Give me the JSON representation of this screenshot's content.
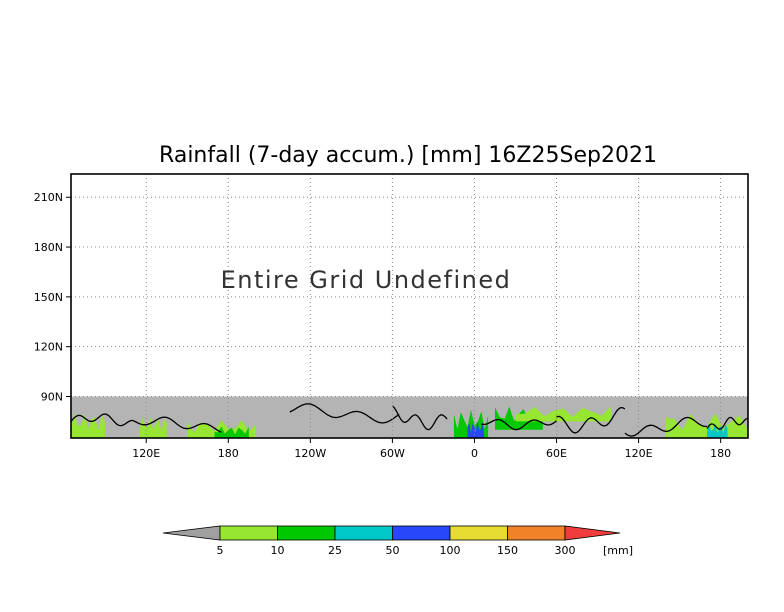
{
  "chart_data": {
    "type": "heatmap",
    "title": "Rainfall (7-day accum.) [mm] 16Z25Sep2021",
    "xlabel": "",
    "ylabel": "",
    "x_ticks": [
      {
        "value": 120,
        "label": "120E"
      },
      {
        "value": 180,
        "label": "180"
      },
      {
        "value": 240,
        "label": "120W"
      },
      {
        "value": 300,
        "label": "60W"
      },
      {
        "value": 360,
        "label": "0"
      },
      {
        "value": 420,
        "label": "60E"
      },
      {
        "value": 480,
        "label": "120E"
      },
      {
        "value": 540,
        "label": "180"
      }
    ],
    "y_ticks": [
      {
        "value": 90,
        "label": "90N"
      },
      {
        "value": 120,
        "label": "120N"
      },
      {
        "value": 150,
        "label": "150N"
      },
      {
        "value": 180,
        "label": "180N"
      },
      {
        "value": 210,
        "label": "210N"
      }
    ],
    "xlim": [
      65,
      560
    ],
    "ylim": [
      65,
      224
    ],
    "grid": true,
    "annotation": "Entire Grid Undefined",
    "colorbar": {
      "unit": "[mm]",
      "levels": [
        "5",
        "10",
        "25",
        "50",
        "100",
        "150",
        "300"
      ],
      "colors": [
        "#a0a0a0",
        "#96e632",
        "#00c800",
        "#00c8c8",
        "#2846fa",
        "#e6dc32",
        "#f08228",
        "#f03c3c"
      ]
    },
    "field_regions": [
      {
        "x": [
          65,
          90
        ],
        "y": [
          65,
          80
        ],
        "level": "5-10"
      },
      {
        "x": [
          115,
          135
        ],
        "y": [
          65,
          78
        ],
        "level": "5-10"
      },
      {
        "x": [
          150,
          200
        ],
        "y": [
          65,
          76
        ],
        "level": "5-10"
      },
      {
        "x": [
          170,
          195
        ],
        "y": [
          65,
          72
        ],
        "level": "10-25"
      },
      {
        "x": [
          345,
          370
        ],
        "y": [
          65,
          82
        ],
        "level": "10-25"
      },
      {
        "x": [
          355,
          367
        ],
        "y": [
          65,
          75
        ],
        "level": "50-100"
      },
      {
        "x": [
          375,
          410
        ],
        "y": [
          70,
          84
        ],
        "level": "10-25"
      },
      {
        "x": [
          390,
          460
        ],
        "y": [
          75,
          84
        ],
        "level": "5-10"
      },
      {
        "x": [
          500,
          560
        ],
        "y": [
          65,
          80
        ],
        "level": "5-10"
      },
      {
        "x": [
          530,
          545
        ],
        "y": [
          65,
          74
        ],
        "level": "25-50"
      }
    ],
    "undefined_color": "#b4b4b4"
  }
}
